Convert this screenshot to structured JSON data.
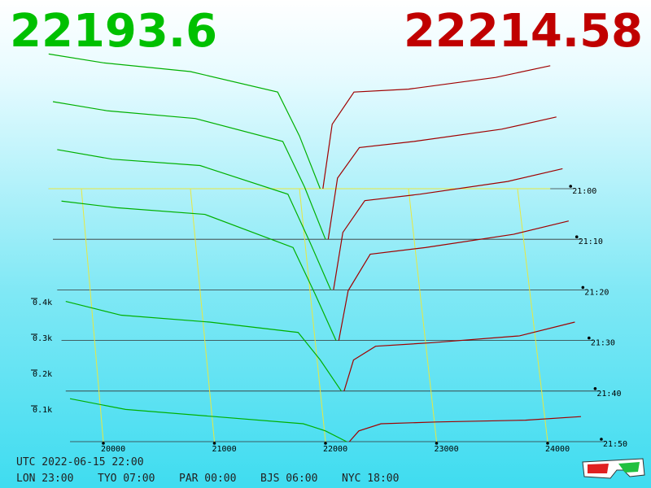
{
  "header": {
    "bid_price": 22193.6,
    "ask_price": 22214.58
  },
  "chart_data": {
    "type": "depth3d",
    "xlim": [
      19700,
      24300
    ],
    "xticks": [
      20000,
      21000,
      22000,
      23000,
      24000
    ],
    "ylim": [
      0,
      500
    ],
    "yticks": [
      {
        "value": 100,
        "label": "0.1k"
      },
      {
        "value": 200,
        "label": "0.2k"
      },
      {
        "value": 300,
        "label": "0.3k"
      },
      {
        "value": 400,
        "label": "0.4k"
      }
    ],
    "times": [
      "21:00",
      "21:10",
      "21:20",
      "21:30",
      "21:40",
      "21:50"
    ],
    "bid_color": "#00b000",
    "ask_color": "#a00000",
    "bids": [
      {
        "x": [
          19700,
          20200,
          21000,
          21800,
          22000,
          22190
        ],
        "values": [
          460,
          430,
          400,
          330,
          180,
          0
        ]
      },
      {
        "x": [
          19700,
          20200,
          21000,
          21800,
          22000,
          22190
        ],
        "values": [
          450,
          420,
          395,
          320,
          170,
          0
        ]
      },
      {
        "x": [
          19700,
          20200,
          21000,
          21800,
          22000,
          22190
        ],
        "values": [
          440,
          410,
          390,
          300,
          150,
          0
        ]
      },
      {
        "x": [
          19700,
          20200,
          21000,
          21800,
          22000,
          22190
        ],
        "values": [
          420,
          400,
          380,
          280,
          140,
          0
        ]
      },
      {
        "x": [
          19700,
          20200,
          21000,
          21800,
          22000,
          22190
        ],
        "values": [
          260,
          220,
          200,
          170,
          90,
          0
        ]
      },
      {
        "x": [
          19700,
          20200,
          21000,
          21800,
          22000,
          22190
        ],
        "values": [
          120,
          90,
          70,
          50,
          30,
          0
        ]
      }
    ],
    "asks": [
      {
        "x": [
          22215,
          22300,
          22500,
          23000,
          23800,
          24300
        ],
        "values": [
          0,
          220,
          330,
          340,
          380,
          420
        ]
      },
      {
        "x": [
          22215,
          22300,
          22500,
          23000,
          23800,
          24300
        ],
        "values": [
          0,
          200,
          300,
          320,
          360,
          400
        ]
      },
      {
        "x": [
          22215,
          22300,
          22500,
          23000,
          23800,
          24300
        ],
        "values": [
          0,
          180,
          280,
          300,
          340,
          380
        ]
      },
      {
        "x": [
          22215,
          22300,
          22500,
          23000,
          23800,
          24300
        ],
        "values": [
          0,
          150,
          260,
          280,
          320,
          360
        ]
      },
      {
        "x": [
          22215,
          22300,
          22500,
          23000,
          23800,
          24300
        ],
        "values": [
          0,
          90,
          130,
          140,
          160,
          200
        ]
      },
      {
        "x": [
          22215,
          22300,
          22500,
          23000,
          23800,
          24300
        ],
        "values": [
          0,
          30,
          50,
          55,
          60,
          70
        ]
      }
    ]
  },
  "footer": {
    "utc": "UTC 2022-06-15 22:00",
    "clocks": [
      "LON 23:00",
      "TYO 07:00",
      "PAR 00:00",
      "BJS 06:00",
      "NYC 18:00"
    ]
  }
}
